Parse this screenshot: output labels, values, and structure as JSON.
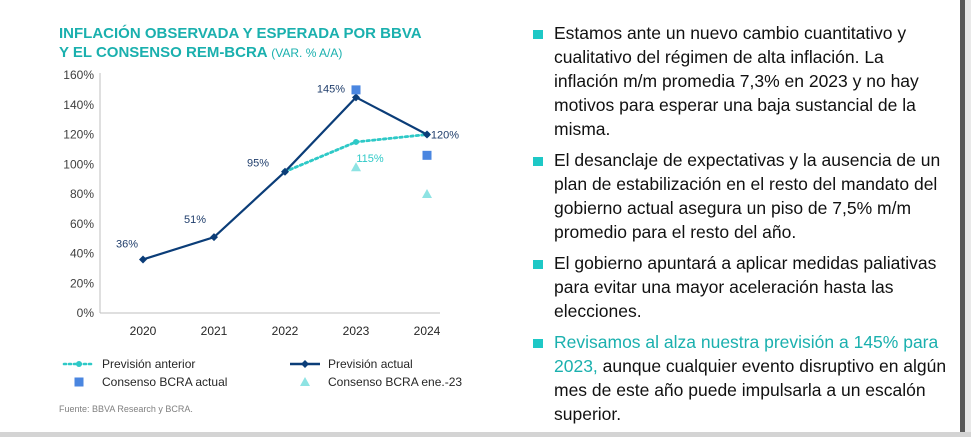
{
  "chart": {
    "title_line1": "INFLACIÓN OBSERVADA Y ESPERADA POR BBVA",
    "title_line2": "Y EL CONSENSO REM-BCRA",
    "title_unit": "(VAR. % A/A)",
    "source": "Fuente: BBVA Research y BCRA."
  },
  "chart_data": {
    "type": "line",
    "x": [
      "2020",
      "2021",
      "2022",
      "2023",
      "2024"
    ],
    "ylim": [
      0,
      160
    ],
    "yticks": [
      "0%",
      "20%",
      "40%",
      "60%",
      "80%",
      "100%",
      "120%",
      "140%",
      "160%"
    ],
    "grid": false,
    "legend_position": "bottom",
    "series": [
      {
        "name": "Previsión anterior",
        "style": "dotted-line-circle",
        "color": "#2ec9c7",
        "values": [
          null,
          null,
          95,
          115,
          120
        ]
      },
      {
        "name": "Previsión actual",
        "style": "line-diamond",
        "color": "#0b3d78",
        "values": [
          36,
          51,
          95,
          145,
          120
        ]
      },
      {
        "name": "Consenso BCRA actual",
        "style": "square-marker",
        "color": "#4a86e0",
        "values": [
          null,
          null,
          null,
          150,
          106
        ]
      },
      {
        "name": "Consenso BCRA ene.-23",
        "style": "triangle-marker",
        "color": "#8ee3e3",
        "values": [
          null,
          null,
          null,
          98,
          80
        ]
      }
    ],
    "data_labels": [
      {
        "text": "36%",
        "x": "2020",
        "series": "Previsión actual"
      },
      {
        "text": "51%",
        "x": "2021",
        "series": "Previsión actual"
      },
      {
        "text": "95%",
        "x": "2022",
        "series": "Previsión actual"
      },
      {
        "text": "145%",
        "x": "2023",
        "series": "Previsión actual"
      },
      {
        "text": "120%",
        "x": "2024",
        "series": "Previsión actual"
      },
      {
        "text": "115%",
        "x": "2023",
        "series": "Previsión anterior"
      }
    ]
  },
  "bullets": [
    {
      "pre": "",
      "highlight": "",
      "text": "Estamos ante un nuevo cambio cuantitativo y cualitativo del régimen de alta inflación. La inflación m/m promedia 7,3% en 2023 y no hay motivos para esperar una baja sustancial de la misma."
    },
    {
      "pre": "",
      "highlight": "",
      "text": "El desanclaje de expectativas y la ausencia de un plan de estabilización en el resto del mandato del gobierno actual asegura un piso de 7,5% m/m promedio para el resto del año."
    },
    {
      "pre": "",
      "highlight": "",
      "text": "El gobierno apuntará a aplicar medidas paliativas para evitar una mayor aceleración hasta las elecciones."
    },
    {
      "pre": "",
      "highlight": "Revisamos al alza nuestra previsión a 145% para 2023,",
      "text": " aunque cualquier evento disruptivo en algún mes de este año puede impulsarla a un escalón superior."
    }
  ]
}
